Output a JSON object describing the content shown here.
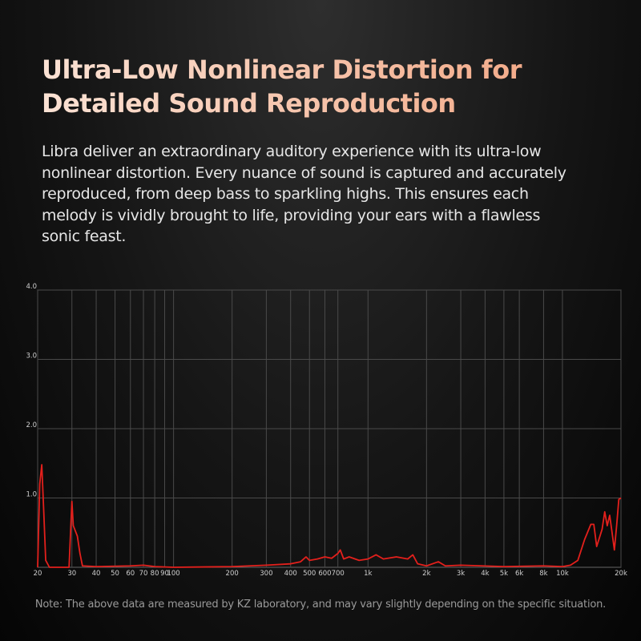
{
  "header": {
    "title_lines": [
      "Ultra-Low Nonlinear Distortion for",
      "Detailed Sound Reproduction"
    ],
    "body_lines": [
      "Libra deliver an extraordinary auditory experience with its ultra-low",
      "nonlinear distortion. Every nuance of sound is captured and accurately",
      "reproduced, from deep bass to sparkling highs. This ensures each",
      "melody is vividly brought to life, providing your ears with a flawless",
      "sonic feast."
    ]
  },
  "chart_data": {
    "type": "line",
    "log_x": true,
    "grid": true,
    "xlim": [
      20,
      20000
    ],
    "ylim": [
      0,
      4
    ],
    "xticks": [
      20,
      30,
      40,
      50,
      60,
      70,
      80,
      90,
      100,
      200,
      300,
      400,
      500,
      600,
      700,
      {
        "value": 1000,
        "label": "1k"
      },
      {
        "value": 2000,
        "label": "2k"
      },
      {
        "value": 3000,
        "label": "3k"
      },
      {
        "value": 4000,
        "label": "4k"
      },
      {
        "value": 5000,
        "label": "5k"
      },
      {
        "value": 6000,
        "label": "6k"
      },
      {
        "value": 8000,
        "label": "8k"
      },
      {
        "value": 10000,
        "label": "10k"
      },
      {
        "value": 20000,
        "label": "20k"
      }
    ],
    "yticks": [
      {
        "value": 1,
        "label": "1.0"
      },
      {
        "value": 2,
        "label": "2.0"
      },
      {
        "value": 3,
        "label": "3.0"
      },
      {
        "value": 4,
        "label": "4.0"
      }
    ],
    "series": [
      {
        "color": "#e3201c",
        "x": [
          20,
          20.5,
          21,
          21.5,
          22,
          23,
          29,
          30,
          30.5,
          32,
          33,
          34,
          40,
          60,
          70,
          80,
          100,
          200,
          300,
          400,
          450,
          480,
          500,
          550,
          600,
          650,
          700,
          720,
          750,
          800,
          900,
          1000,
          1100,
          1200,
          1400,
          1600,
          1700,
          1800,
          2000,
          2300,
          2500,
          3000,
          5000,
          8000,
          10000,
          11000,
          12000,
          13000,
          14000,
          14500,
          15000,
          16000,
          16500,
          17000,
          17500,
          18000,
          18500,
          19000,
          19500,
          20000
        ],
        "values": [
          0,
          1.2,
          1.48,
          0.8,
          0.1,
          0,
          0,
          0.95,
          0.6,
          0.45,
          0.2,
          0.02,
          0.01,
          0.02,
          0.03,
          0.01,
          0,
          0.01,
          0.03,
          0.05,
          0.08,
          0.15,
          0.1,
          0.12,
          0.15,
          0.13,
          0.2,
          0.25,
          0.12,
          0.15,
          0.1,
          0.12,
          0.18,
          0.12,
          0.15,
          0.12,
          0.18,
          0.05,
          0.02,
          0.08,
          0.02,
          0.03,
          0.01,
          0.02,
          0.01,
          0.03,
          0.1,
          0.4,
          0.62,
          0.62,
          0.3,
          0.55,
          0.8,
          0.6,
          0.75,
          0.5,
          0.25,
          0.6,
          0.98,
          1.0
        ]
      }
    ]
  },
  "note": "Note: The above data are measured by KZ laboratory, and may vary slightly depending on the specific situation."
}
